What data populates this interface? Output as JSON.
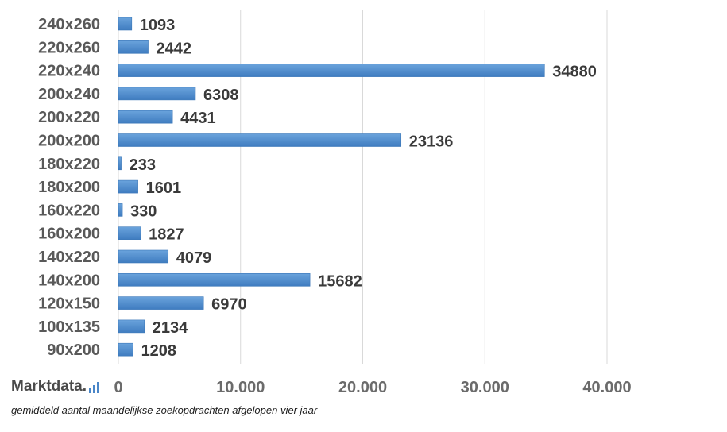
{
  "chart_data": {
    "type": "bar",
    "orientation": "horizontal",
    "categories": [
      "240x260",
      "220x260",
      "220x240",
      "200x240",
      "200x220",
      "200x200",
      "180x220",
      "180x200",
      "160x220",
      "160x200",
      "140x220",
      "140x200",
      "120x150",
      "100x135",
      "90x200"
    ],
    "values": [
      1093,
      2442,
      34880,
      6308,
      4431,
      23136,
      233,
      1601,
      330,
      1827,
      4079,
      15682,
      6970,
      2134,
      1208
    ],
    "value_labels": [
      "1093",
      "2442",
      "34880",
      "6308",
      "4431",
      "23136",
      "233",
      "1601",
      "330",
      "1827",
      "4079",
      "15682",
      "6970",
      "2134",
      "1208"
    ],
    "xticks": [
      0,
      10000,
      20000,
      30000,
      40000
    ],
    "xtick_labels": [
      "0",
      "10.000",
      "20.000",
      "30.000",
      "40.000"
    ],
    "xlim": [
      0,
      40000
    ],
    "grid": "vertical",
    "bar_color": "#4a86c8",
    "grid_color": "#d9d9d9"
  },
  "brand": {
    "name": "Marktdata."
  },
  "caption": "gemiddeld aantal maandelijkse zoekopdrachten afgelopen vier jaar"
}
